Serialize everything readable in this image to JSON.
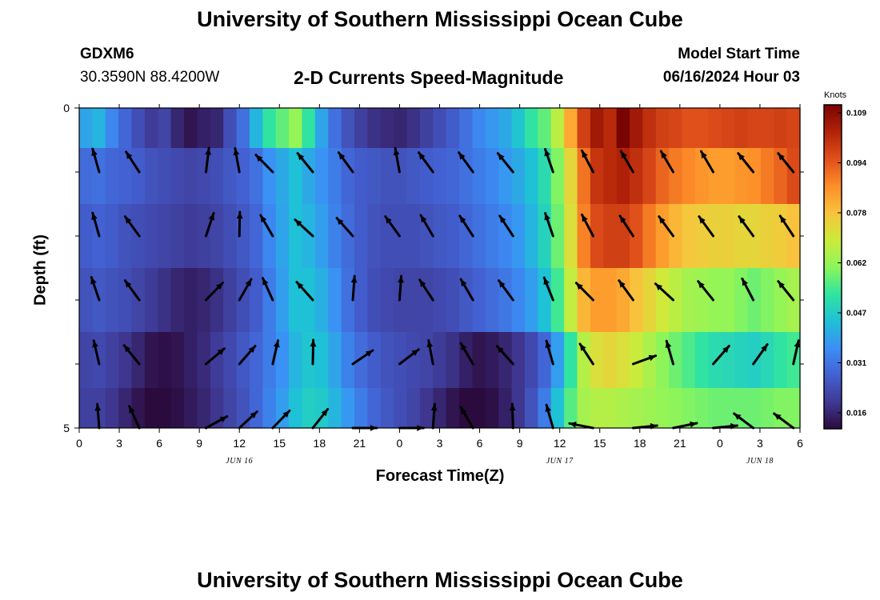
{
  "header": {
    "title": "University of Southern Mississippi Ocean Cube",
    "station_id": "GDXM6",
    "coordinates": "30.3590N  88.4200W",
    "subtitle": "2-D Currents Speed-Magnitude",
    "start_label": "Model Start Time",
    "start_value": "06/16/2024 Hour 03"
  },
  "footer": {
    "title": "University of Southern Mississippi Ocean Cube"
  },
  "chart_data": {
    "type": "heatmap",
    "title": "2-D Currents Speed-Magnitude",
    "xlabel": "Forecast Time(Z)",
    "ylabel": "Depth (ft)",
    "x_range_hours": [
      0,
      54
    ],
    "x_tick_labels": [
      "0",
      "3",
      "6",
      "9",
      "12",
      "15",
      "18",
      "21",
      "0",
      "3",
      "6",
      "9",
      "12",
      "15",
      "18",
      "21",
      "0",
      "3",
      "6"
    ],
    "date_labels": [
      {
        "label": "JUN 16",
        "hour": 12
      },
      {
        "label": "JUN 17",
        "hour": 36
      },
      {
        "label": "JUN 18",
        "hour": 51
      }
    ],
    "y_range": [
      0,
      5
    ],
    "y_tick_labels": [
      {
        "value": 0,
        "label": "0"
      },
      {
        "value": 5,
        "label": "5"
      }
    ],
    "y_minor_ticks": [
      1,
      2,
      3,
      4
    ],
    "colorbar": {
      "unit": "Knots",
      "ticks": [
        "0.109",
        "0.094",
        "0.078",
        "0.062",
        "0.047",
        "0.031",
        "0.016"
      ],
      "min": 0.008,
      "max": 0.11,
      "palette": [
        "#2b0a3d",
        "#3f3994",
        "#4361d2",
        "#3b8ff6",
        "#1fc1d6",
        "#31e59f",
        "#8df55a",
        "#cdeb3a",
        "#f9c23c",
        "#fd8d28",
        "#e0501b",
        "#b12208",
        "#7a0403"
      ]
    },
    "speed_rows": [
      {
        "depth": 0.25,
        "speed": [
          0.037,
          0.04,
          0.032,
          0.026,
          0.021,
          0.017,
          0.019,
          0.013,
          0.01,
          0.012,
          0.013,
          0.021,
          0.028,
          0.04,
          0.05,
          0.055,
          0.06,
          0.05,
          0.037,
          0.028,
          0.022,
          0.018,
          0.015,
          0.014,
          0.013,
          0.015,
          0.018,
          0.021,
          0.024,
          0.028,
          0.032,
          0.035,
          0.038,
          0.043,
          0.05,
          0.055,
          0.065,
          0.08,
          0.096,
          0.104,
          0.1,
          0.11,
          0.104,
          0.099,
          0.096,
          0.095,
          0.093,
          0.093,
          0.094,
          0.095,
          0.096,
          0.095,
          0.095,
          0.096,
          0.095
        ]
      },
      {
        "depth": 1,
        "speed": [
          0.027,
          0.028,
          0.026,
          0.025,
          0.024,
          0.022,
          0.021,
          0.02,
          0.019,
          0.02,
          0.021,
          0.023,
          0.025,
          0.028,
          0.034,
          0.038,
          0.042,
          0.038,
          0.034,
          0.03,
          0.026,
          0.024,
          0.023,
          0.022,
          0.022,
          0.023,
          0.024,
          0.025,
          0.026,
          0.028,
          0.03,
          0.032,
          0.035,
          0.038,
          0.042,
          0.048,
          0.058,
          0.072,
          0.088,
          0.098,
          0.1,
          0.102,
          0.099,
          0.095,
          0.09,
          0.087,
          0.085,
          0.083,
          0.082,
          0.082,
          0.083,
          0.084,
          0.087,
          0.09,
          0.094
        ]
      },
      {
        "depth": 2,
        "speed": [
          0.024,
          0.025,
          0.024,
          0.022,
          0.021,
          0.02,
          0.019,
          0.018,
          0.017,
          0.018,
          0.019,
          0.021,
          0.023,
          0.026,
          0.032,
          0.037,
          0.042,
          0.04,
          0.036,
          0.031,
          0.027,
          0.024,
          0.022,
          0.021,
          0.021,
          0.021,
          0.022,
          0.023,
          0.024,
          0.026,
          0.028,
          0.03,
          0.032,
          0.035,
          0.04,
          0.046,
          0.056,
          0.07,
          0.086,
          0.094,
          0.096,
          0.096,
          0.093,
          0.087,
          0.082,
          0.078,
          0.075,
          0.074,
          0.073,
          0.073,
          0.072,
          0.072,
          0.073,
          0.074,
          0.076
        ]
      },
      {
        "depth": 3,
        "speed": [
          0.022,
          0.023,
          0.022,
          0.021,
          0.019,
          0.017,
          0.015,
          0.013,
          0.012,
          0.013,
          0.015,
          0.018,
          0.021,
          0.024,
          0.03,
          0.036,
          0.042,
          0.042,
          0.039,
          0.034,
          0.028,
          0.024,
          0.021,
          0.02,
          0.019,
          0.019,
          0.019,
          0.02,
          0.021,
          0.023,
          0.025,
          0.027,
          0.029,
          0.032,
          0.036,
          0.042,
          0.052,
          0.066,
          0.078,
          0.082,
          0.082,
          0.08,
          0.076,
          0.072,
          0.068,
          0.065,
          0.062,
          0.061,
          0.06,
          0.06,
          0.058,
          0.056,
          0.058,
          0.06,
          0.062
        ]
      },
      {
        "depth": 4,
        "speed": [
          0.019,
          0.02,
          0.018,
          0.016,
          0.013,
          0.01,
          0.009,
          0.01,
          0.012,
          0.014,
          0.017,
          0.02,
          0.023,
          0.026,
          0.03,
          0.034,
          0.04,
          0.043,
          0.042,
          0.037,
          0.031,
          0.027,
          0.024,
          0.022,
          0.021,
          0.02,
          0.019,
          0.017,
          0.015,
          0.012,
          0.01,
          0.011,
          0.013,
          0.016,
          0.02,
          0.026,
          0.036,
          0.05,
          0.064,
          0.07,
          0.072,
          0.07,
          0.067,
          0.063,
          0.059,
          0.056,
          0.053,
          0.05,
          0.048,
          0.047,
          0.046,
          0.045,
          0.047,
          0.05,
          0.052
        ]
      },
      {
        "depth": 4.75,
        "speed": [
          0.018,
          0.018,
          0.016,
          0.013,
          0.01,
          0.008,
          0.008,
          0.009,
          0.011,
          0.013,
          0.016,
          0.019,
          0.022,
          0.026,
          0.031,
          0.036,
          0.042,
          0.045,
          0.044,
          0.04,
          0.035,
          0.03,
          0.026,
          0.023,
          0.021,
          0.019,
          0.016,
          0.013,
          0.01,
          0.008,
          0.008,
          0.009,
          0.012,
          0.016,
          0.022,
          0.03,
          0.042,
          0.054,
          0.062,
          0.064,
          0.064,
          0.063,
          0.062,
          0.061,
          0.06,
          0.059,
          0.058,
          0.057,
          0.056,
          0.056,
          0.056,
          0.056,
          0.057,
          0.058,
          0.058
        ]
      }
    ],
    "arrow_hours": [
      1.5,
      4.5,
      9.5,
      12,
      14.5,
      17.5,
      20.5,
      24,
      26.5,
      29.5,
      32.5,
      35.5,
      38.5,
      41.5,
      44.5,
      47.5,
      50.5,
      53.5
    ],
    "arrows": [
      {
        "depth": 1,
        "directions": [
          -1.85,
          -2.15,
          -1.45,
          -1.75,
          -2.35,
          -2.25,
          -2.2,
          -1.75,
          -2.2,
          -2.2,
          -2.25,
          -1.9,
          -2.05,
          -2.1,
          -2.1,
          -2.1,
          -2.25,
          -2.25
        ]
      },
      {
        "depth": 2,
        "directions": [
          -1.85,
          -2.2,
          -1.25,
          -1.55,
          -2.1,
          -2.4,
          -2.3,
          -2.2,
          -2.1,
          -2.15,
          -2.15,
          -1.9,
          -2.05,
          -2.15,
          -2.2,
          -2.2,
          -2.2,
          -2.15
        ]
      },
      {
        "depth": 3,
        "directions": [
          -1.9,
          -2.2,
          -0.8,
          -1.05,
          -2.0,
          -2.3,
          -1.5,
          -1.5,
          -2.15,
          -2.1,
          -2.2,
          -1.95,
          -2.35,
          -2.2,
          -2.4,
          -2.25,
          -2.05,
          -2.25
        ]
      },
      {
        "depth": 4,
        "directions": [
          -1.8,
          -2.25,
          -0.7,
          -0.85,
          -1.35,
          -1.55,
          -0.6,
          -0.65,
          -1.75,
          -2.1,
          -2.3,
          -1.85,
          -2.15,
          -0.35,
          -1.85,
          -0.85,
          -0.95,
          -1.35
        ]
      },
      {
        "depth": 5,
        "directions": [
          -1.65,
          -2.0,
          -0.5,
          -0.75,
          -0.8,
          -0.9,
          0.0,
          0.0,
          -1.5,
          -2.1,
          -1.6,
          -1.85,
          -2.95,
          -0.1,
          -0.2,
          -0.1,
          -2.5,
          -2.5
        ]
      }
    ]
  }
}
